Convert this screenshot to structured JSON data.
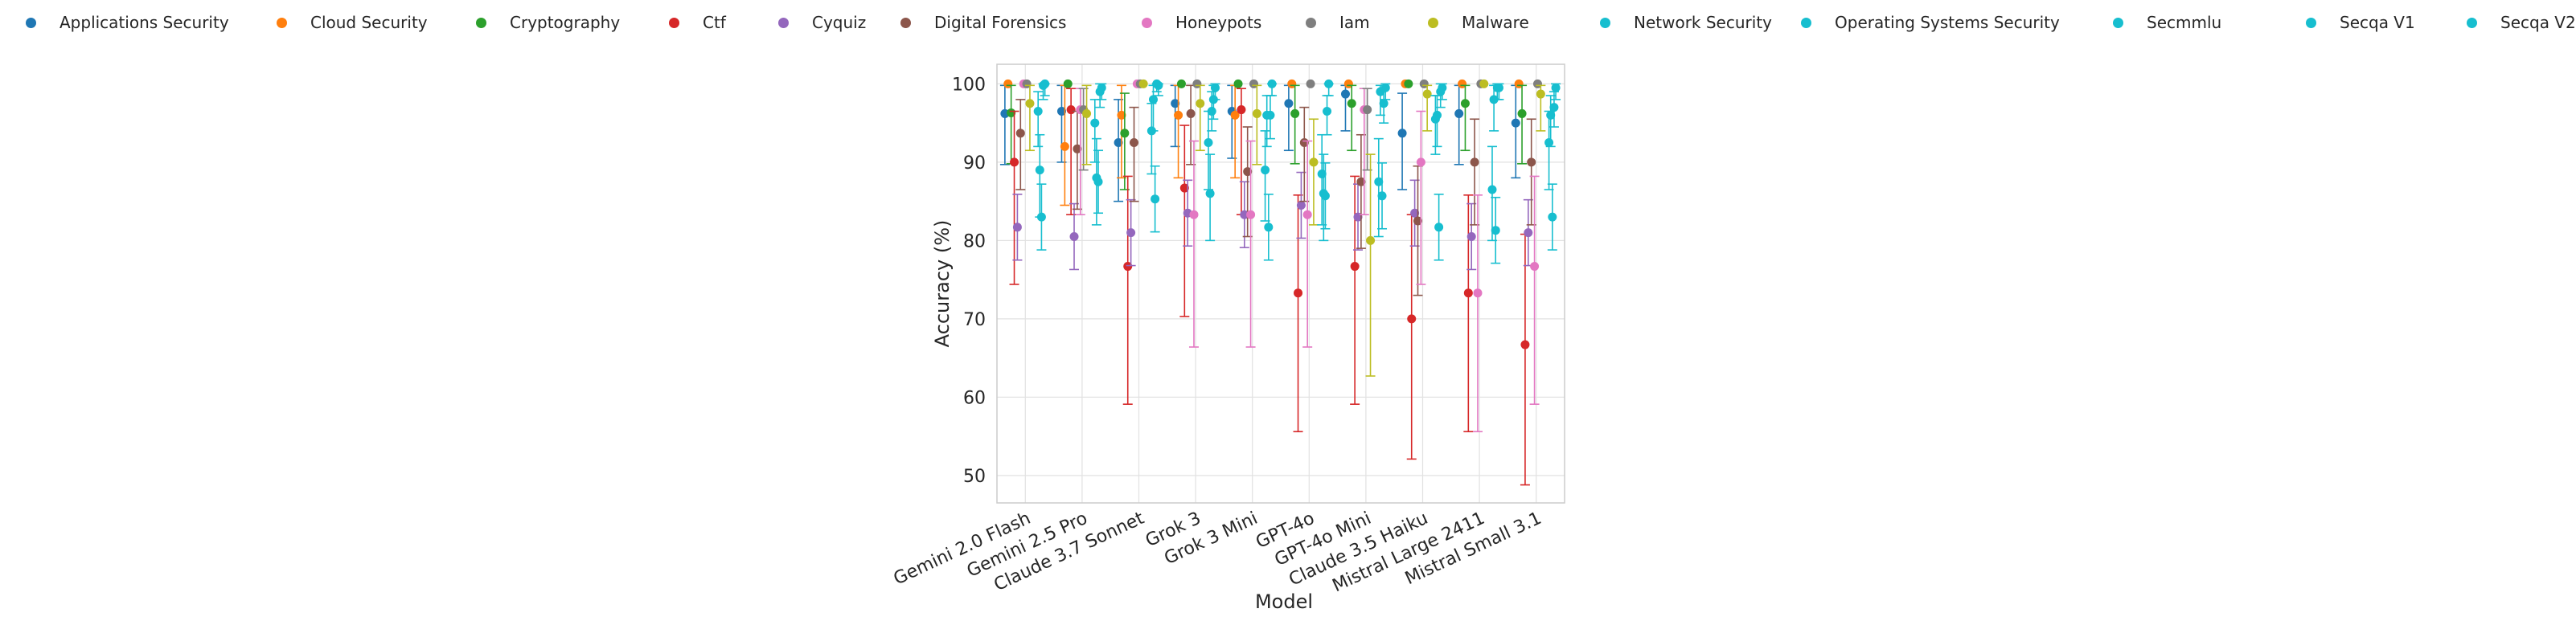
{
  "chart_data": {
    "type": "scatter",
    "xlabel": "Model",
    "ylabel": "Accuracy (%)",
    "ylim": [
      46.5,
      102.5
    ],
    "yticks": [
      50,
      60,
      70,
      80,
      90,
      100
    ],
    "grid": true,
    "legend_position": "top",
    "error_bars": true,
    "categories": [
      "Gemini 2.0 Flash",
      "Gemini 2.5 Pro",
      "Claude 3.7 Sonnet",
      "Grok 3",
      "Grok 3 Mini",
      "GPT-4o",
      "GPT-4o Mini",
      "Claude 3.5 Haiku",
      "Mistral Large 2411",
      "Mistral Small 3.1"
    ],
    "series": [
      {
        "name": "Applications Security",
        "color": "#1f77b4",
        "values": [
          96.2,
          96.5,
          92.5,
          97.5,
          96.5,
          97.5,
          98.7,
          93.7,
          96.2,
          95.0
        ],
        "err_low": [
          89.7,
          90.0,
          85.0,
          92.0,
          90.5,
          91.5,
          94.0,
          86.5,
          89.7,
          88.0
        ],
        "err_high": [
          99.8,
          99.8,
          98.0,
          99.8,
          99.8,
          99.8,
          99.8,
          98.8,
          99.8,
          99.8
        ]
      },
      {
        "name": "Cloud Security",
        "color": "#ff7f0e",
        "values": [
          100,
          92.0,
          96.0,
          96.0,
          96.0,
          100,
          100,
          100,
          100,
          100
        ],
        "err_low": [
          100,
          84.5,
          88.0,
          88.0,
          88.0,
          100,
          100,
          100,
          100,
          100
        ],
        "err_high": [
          100,
          99.8,
          99.8,
          99.8,
          99.8,
          100,
          100,
          100,
          100,
          100
        ]
      },
      {
        "name": "Cryptography",
        "color": "#2ca02c",
        "values": [
          96.3,
          100,
          93.7,
          100,
          100,
          96.2,
          97.5,
          100,
          97.5,
          96.2
        ],
        "err_low": [
          89.8,
          100,
          86.5,
          100,
          100,
          89.8,
          91.5,
          100,
          91.5,
          89.8
        ],
        "err_high": [
          99.8,
          100,
          98.8,
          100,
          100,
          99.8,
          99.8,
          100,
          99.8,
          99.8
        ]
      },
      {
        "name": "Ctf",
        "color": "#d62728",
        "values": [
          90.0,
          96.7,
          76.7,
          86.7,
          96.7,
          73.3,
          76.7,
          70.0,
          73.3,
          66.7
        ],
        "err_low": [
          74.4,
          83.3,
          59.1,
          70.3,
          83.3,
          55.6,
          59.1,
          52.1,
          55.6,
          48.8
        ],
        "err_high": [
          96.5,
          99.4,
          88.2,
          94.7,
          99.4,
          85.8,
          88.2,
          83.3,
          85.8,
          80.8
        ]
      },
      {
        "name": "Cyquiz",
        "color": "#9467bd",
        "values": [
          81.7,
          80.5,
          81.0,
          83.5,
          83.3,
          84.5,
          83.0,
          83.5,
          80.5,
          81.0
        ],
        "err_low": [
          77.5,
          76.3,
          76.8,
          79.3,
          79.1,
          80.3,
          78.8,
          79.3,
          76.3,
          76.8
        ],
        "err_high": [
          85.9,
          84.7,
          85.2,
          87.7,
          87.5,
          88.7,
          87.2,
          87.7,
          84.7,
          85.2
        ]
      },
      {
        "name": "Digital Forensics",
        "color": "#8c564b",
        "values": [
          93.7,
          91.7,
          92.5,
          96.2,
          88.8,
          92.5,
          87.5,
          82.5,
          90.0,
          90.0
        ],
        "err_low": [
          86.5,
          84.0,
          85.0,
          89.7,
          80.5,
          85.0,
          79.0,
          73.0,
          82.0,
          82.0
        ],
        "err_high": [
          98.0,
          96.5,
          97.0,
          99.8,
          94.5,
          97.0,
          93.5,
          89.5,
          95.5,
          95.5
        ]
      },
      {
        "name": "Honeypots",
        "color": "#e377c2",
        "values": [
          100,
          96.7,
          100,
          83.3,
          83.3,
          83.3,
          96.7,
          90.0,
          73.3,
          76.7
        ],
        "err_low": [
          100,
          83.3,
          100,
          66.4,
          66.4,
          66.4,
          83.3,
          74.4,
          55.6,
          59.1
        ],
        "err_high": [
          100,
          99.4,
          100,
          92.7,
          92.7,
          92.7,
          99.4,
          96.5,
          85.8,
          88.2
        ]
      },
      {
        "name": "Iam",
        "color": "#7f7f7f",
        "values": [
          100,
          96.7,
          100,
          100,
          100,
          100,
          96.7,
          100,
          100,
          100
        ],
        "err_low": [
          100,
          89.0,
          100,
          100,
          100,
          100,
          89.0,
          100,
          100,
          100
        ],
        "err_high": [
          100,
          99.4,
          100,
          100,
          100,
          100,
          99.4,
          100,
          100,
          100
        ]
      },
      {
        "name": "Malware",
        "color": "#bcbd22",
        "values": [
          97.5,
          96.2,
          100,
          97.5,
          96.2,
          90.0,
          80.0,
          98.7,
          100,
          98.7
        ],
        "err_low": [
          91.5,
          89.7,
          100,
          91.5,
          89.7,
          82.0,
          62.7,
          94.0,
          100,
          94.0
        ],
        "err_high": [
          99.8,
          99.8,
          100,
          99.8,
          99.8,
          95.5,
          91.0,
          99.8,
          100,
          99.8
        ]
      },
      {
        "name": "Network Security",
        "color": "#17becf",
        "values": [
          96.5,
          95.0,
          94.0,
          92.5,
          89.0,
          88.5,
          87.5,
          95.5,
          86.5,
          92.5
        ],
        "err_low": [
          92.0,
          90.0,
          88.5,
          86.5,
          82.5,
          82.0,
          80.5,
          91.0,
          80.0,
          86.5
        ],
        "err_high": [
          99.0,
          98.0,
          97.5,
          96.5,
          94.0,
          93.5,
          93.0,
          98.5,
          92.0,
          96.5
        ],
        "offset": 0.225
      },
      {
        "name": "Operating Systems Security",
        "color": "#17becf",
        "values": [
          89.0,
          88.0,
          98.0,
          86.0,
          96.0,
          86.0,
          99.0,
          96.0,
          98.0,
          96.0
        ],
        "err_low": [
          83.0,
          82.0,
          94.0,
          80.0,
          92.0,
          80.0,
          96.0,
          92.0,
          94.0,
          92.0
        ],
        "err_high": [
          93.5,
          93.0,
          99.8,
          91.0,
          98.5,
          91.0,
          99.8,
          98.5,
          99.8,
          98.5
        ],
        "offset": 0.255
      },
      {
        "name": "Secmmlu",
        "color": "#17becf",
        "values": [
          83.0,
          87.5,
          85.3,
          96.5,
          81.7,
          85.7,
          85.7,
          81.7,
          81.3,
          83.0
        ],
        "err_low": [
          78.8,
          83.5,
          81.1,
          94.0,
          77.5,
          81.5,
          81.5,
          77.5,
          77.1,
          78.8
        ],
        "err_high": [
          87.2,
          91.5,
          89.5,
          99.0,
          85.9,
          89.9,
          89.9,
          85.9,
          85.5,
          87.2
        ],
        "offset": 0.285
      },
      {
        "name": "Secqa V1",
        "color": "#17becf",
        "values": [
          99.8,
          99.0,
          100,
          98.0,
          96.0,
          96.5,
          97.5,
          99.0,
          99.5,
          97.0
        ],
        "err_low": [
          98.0,
          97.0,
          99.0,
          95.5,
          93.0,
          93.5,
          95.0,
          97.0,
          98.0,
          94.5
        ],
        "err_high": [
          100,
          100,
          100,
          99.8,
          98.5,
          98.5,
          99.5,
          100,
          100,
          99.0
        ],
        "offset": 0.315
      },
      {
        "name": "Secqa V2",
        "color": "#17becf",
        "values": [
          100,
          99.5,
          99.8,
          99.5,
          100,
          100,
          99.5,
          99.5,
          99.5,
          99.5
        ],
        "err_low": [
          98.5,
          98.0,
          98.5,
          98.0,
          98.5,
          98.5,
          98.0,
          98.0,
          98.0,
          98.0
        ],
        "err_high": [
          100,
          100,
          100,
          100,
          100,
          100,
          100,
          100,
          100,
          100
        ],
        "offset": 0.345
      }
    ]
  }
}
